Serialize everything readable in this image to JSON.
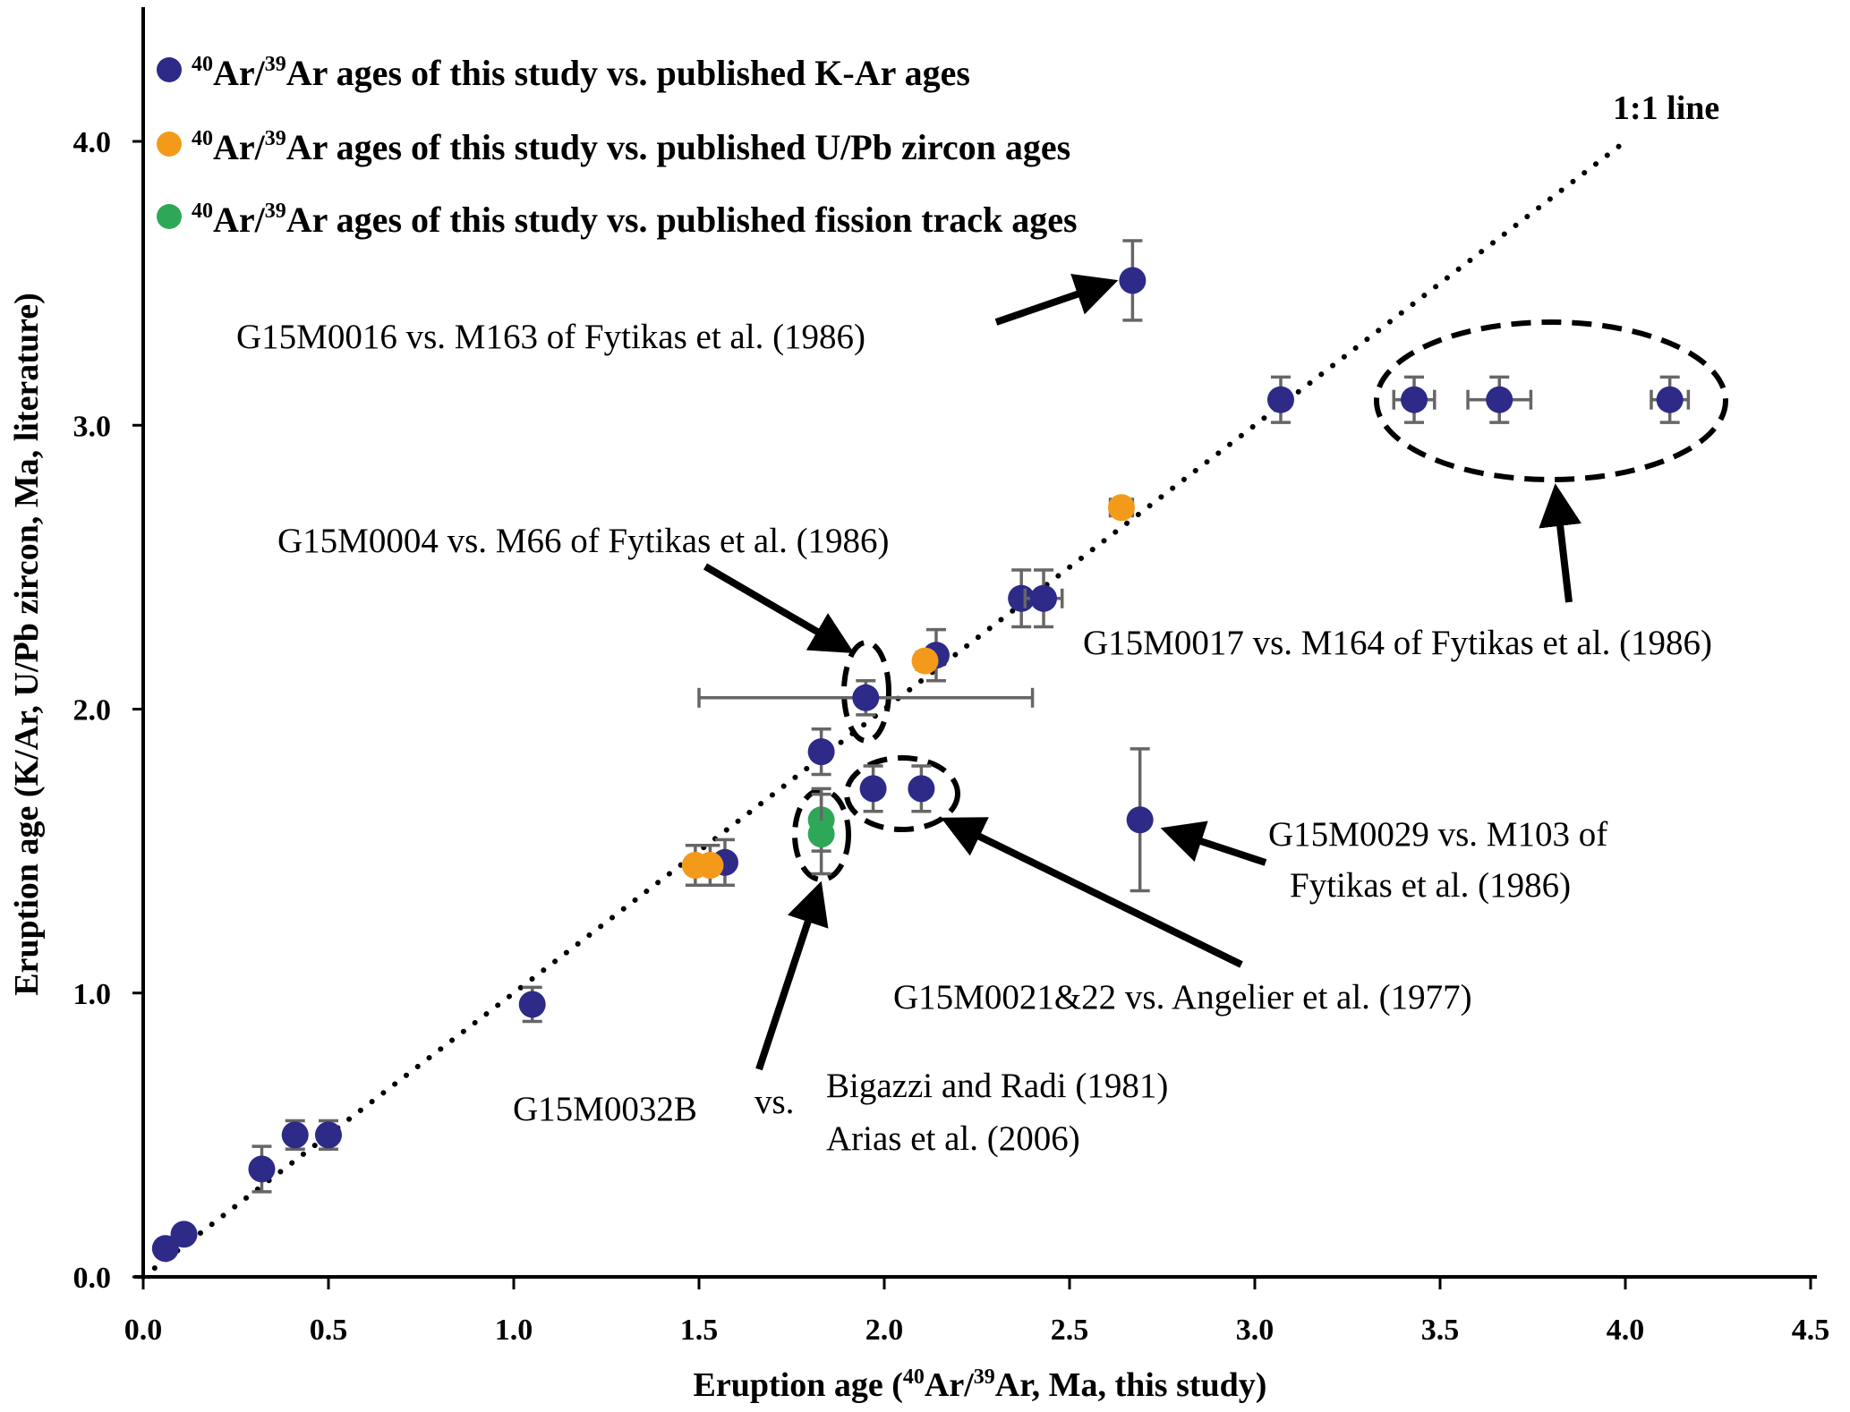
{
  "chart_data": {
    "type": "scatter",
    "title": "",
    "xlabel": "Eruption age (40Ar/39Ar, Ma, this study)",
    "xlabel_parts": {
      "prefix": "Eruption age (",
      "sup1": "40",
      "mid": "Ar/",
      "sup2": "39",
      "suffix": "Ar, Ma, this study)"
    },
    "ylabel": "Eruption age (K/Ar, U/Pb zircon, Ma, literature)",
    "xlim": [
      0,
      4.5
    ],
    "ylim": [
      0,
      4.5
    ],
    "x_ticks": [
      "0.0",
      "0.5",
      "1.0",
      "1.5",
      "2.0",
      "2.5",
      "3.0",
      "3.5",
      "4.0",
      "4.5"
    ],
    "y_ticks": [
      "0.0",
      "1.0",
      "2.0",
      "3.0",
      "4.0"
    ],
    "x_tick_values": [
      0,
      0.5,
      1.0,
      1.5,
      2.0,
      2.5,
      3.0,
      3.5,
      4.0,
      4.5
    ],
    "y_tick_values": [
      0,
      1.0,
      2.0,
      3.0,
      4.0
    ],
    "grid": false,
    "legend_position": "top-left",
    "reference_line": {
      "label": "1:1 line",
      "from": [
        0,
        0
      ],
      "to": [
        4.0,
        4.0
      ]
    },
    "series": [
      {
        "name": "40Ar/39Ar ages of this study vs. published K-Ar ages",
        "legend_parts": {
          "sup1": "40",
          "mid": "Ar/",
          "sup2": "39",
          "rest": "Ar ages of this study vs. published K-Ar ages"
        },
        "color": "#2e2a88",
        "points": [
          {
            "x": 0.06,
            "y": 0.1,
            "yerr": 0.02,
            "xerr": 0
          },
          {
            "x": 0.11,
            "y": 0.15,
            "yerr": 0.02,
            "xerr": 0
          },
          {
            "x": 0.32,
            "y": 0.38,
            "yerr": 0.08,
            "xerr": 0
          },
          {
            "x": 0.41,
            "y": 0.5,
            "yerr": 0.05,
            "xerr": 0
          },
          {
            "x": 0.5,
            "y": 0.5,
            "yerr": 0.05,
            "xerr": 0
          },
          {
            "x": 1.05,
            "y": 0.96,
            "yerr": 0.06,
            "xerr": 0
          },
          {
            "x": 1.57,
            "y": 1.46,
            "yerr": 0.08,
            "xerr": 0
          },
          {
            "x": 1.83,
            "y": 1.85,
            "yerr": 0.08,
            "xerr": 0
          },
          {
            "x": 1.95,
            "y": 2.04,
            "yerr": 0.06,
            "xerr": 0.45
          },
          {
            "x": 1.97,
            "y": 1.72,
            "yerr": 0.08,
            "xerr": 0
          },
          {
            "x": 2.1,
            "y": 1.72,
            "yerr": 0.08,
            "xerr": 0
          },
          {
            "x": 2.14,
            "y": 2.19,
            "yerr": 0.09,
            "xerr": 0
          },
          {
            "x": 2.37,
            "y": 2.39,
            "yerr": 0.1,
            "xerr": 0
          },
          {
            "x": 2.43,
            "y": 2.39,
            "yerr": 0.1,
            "xerr": 0.05
          },
          {
            "x": 2.67,
            "y": 3.51,
            "yerr": 0.14,
            "xerr": 0
          },
          {
            "x": 2.69,
            "y": 1.61,
            "yerr": 0.25,
            "xerr": 0
          },
          {
            "x": 3.07,
            "y": 3.09,
            "yerr": 0.08,
            "xerr": 0
          },
          {
            "x": 3.43,
            "y": 3.09,
            "yerr": 0.08,
            "xerr": 0.055
          },
          {
            "x": 3.66,
            "y": 3.09,
            "yerr": 0.08,
            "xerr": 0.085
          },
          {
            "x": 4.12,
            "y": 3.09,
            "yerr": 0.08,
            "xerr": 0.05
          }
        ]
      },
      {
        "name": "40Ar/39Ar ages of this study vs. published U/Pb zircon ages",
        "legend_parts": {
          "sup1": "40",
          "mid": "Ar/",
          "sup2": "39",
          "rest": "Ar ages of this study vs. published U/Pb zircon ages"
        },
        "color": "#f39a1b",
        "points": [
          {
            "x": 1.49,
            "y": 1.45,
            "yerr": 0.07,
            "xerr": 0
          },
          {
            "x": 1.53,
            "y": 1.45,
            "yerr": 0.07,
            "xerr": 0
          },
          {
            "x": 2.11,
            "y": 2.17,
            "yerr": 0.03,
            "xerr": 0
          },
          {
            "x": 2.64,
            "y": 2.71,
            "yerr": 0.02,
            "xerr": 0.03
          }
        ]
      },
      {
        "name": "40Ar/39Ar ages of this study vs. published fission track ages",
        "legend_parts": {
          "sup1": "40",
          "mid": "Ar/",
          "sup2": "39",
          "rest": "Ar ages of this study vs. published fission track ages"
        },
        "color": "#2ea858",
        "points": [
          {
            "x": 1.83,
            "y": 1.61,
            "yerr": 0.11,
            "xerr": 0
          },
          {
            "x": 1.83,
            "y": 1.56,
            "yerr": 0.14,
            "xerr": 0
          }
        ]
      }
    ],
    "annotations": [
      {
        "id": "m0016",
        "lines": [
          "G15M0016 vs. M163 of Fytikas et al. (1986)"
        ]
      },
      {
        "id": "m0004",
        "lines": [
          "G15M0004 vs. M66 of Fytikas et al. (1986)"
        ]
      },
      {
        "id": "m0017",
        "lines": [
          "G15M0017 vs. M164 of Fytikas et al. (1986)"
        ]
      },
      {
        "id": "m0029",
        "lines": [
          "G15M0029 vs. M103 of",
          "Fytikas et al. (1986)"
        ]
      },
      {
        "id": "m0021",
        "lines": [
          "G15M0021&22 vs. Angelier et al. (1977)"
        ]
      },
      {
        "id": "m0032",
        "lines": [
          "G15M0032B",
          "vs.",
          "Bigazzi and Radi (1981)",
          "Arias et al. (2006)"
        ]
      }
    ]
  }
}
